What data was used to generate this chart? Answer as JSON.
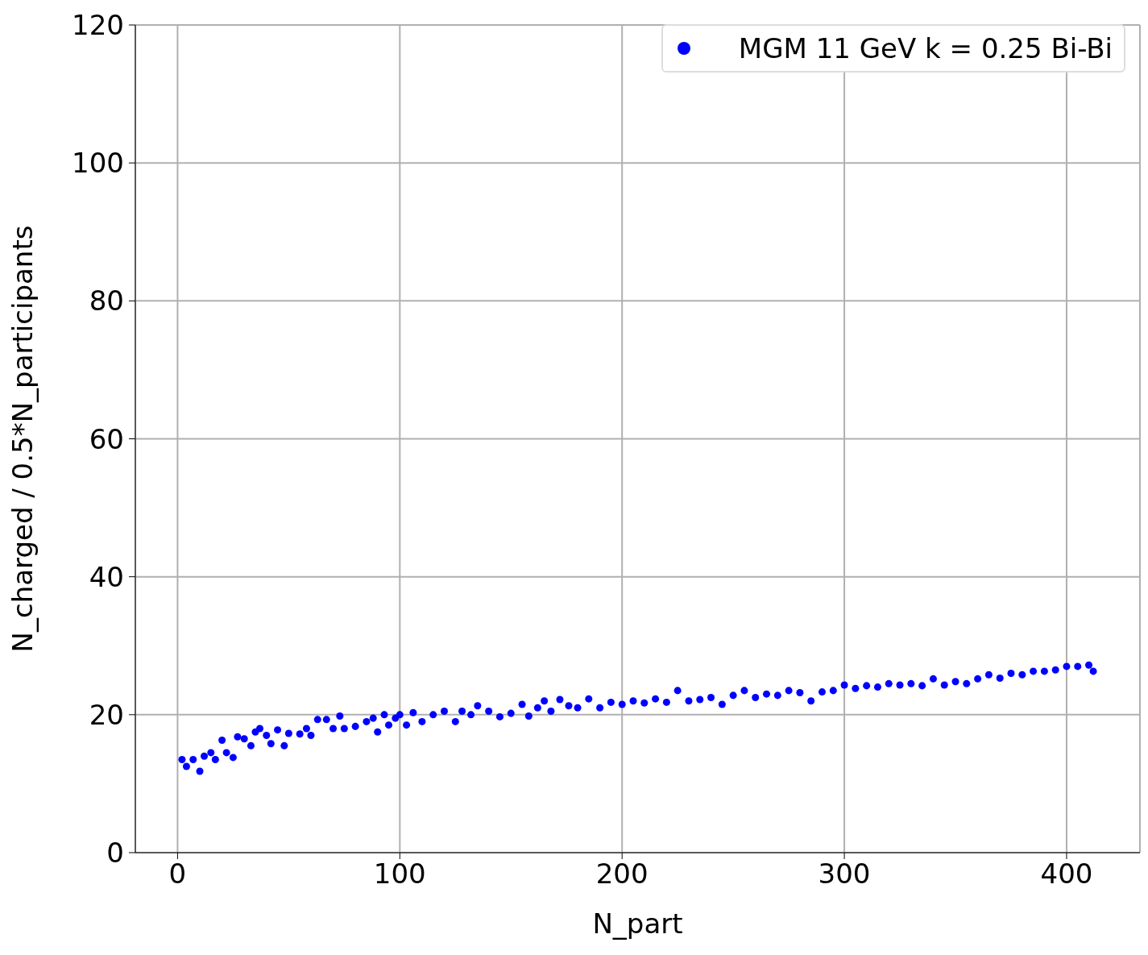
{
  "chart_data": {
    "type": "scatter",
    "xlabel": "N_part",
    "ylabel": "N_charged / 0.5*N_participants",
    "xlim": [
      -19,
      433
    ],
    "xticks": [
      0,
      100,
      200,
      300,
      400
    ],
    "ylim": [
      0,
      120
    ],
    "yticks": [
      0,
      20,
      40,
      60,
      80,
      100,
      120
    ],
    "grid": true,
    "legend": "top right",
    "marker": "circle",
    "series": [
      {
        "name": "MGM 11 GeV k = 0.25 Bi-Bi",
        "color": "#0000ff",
        "x": [
          2,
          4,
          7,
          10,
          12,
          15,
          17,
          20,
          22,
          25,
          27,
          30,
          33,
          35,
          37,
          40,
          42,
          45,
          48,
          50,
          55,
          58,
          60,
          63,
          67,
          70,
          73,
          75,
          80,
          85,
          88,
          90,
          93,
          95,
          98,
          100,
          103,
          106,
          110,
          115,
          120,
          125,
          128,
          132,
          135,
          140,
          145,
          150,
          155,
          158,
          162,
          165,
          168,
          172,
          176,
          180,
          185,
          190,
          195,
          200,
          205,
          210,
          215,
          220,
          225,
          230,
          235,
          240,
          245,
          250,
          255,
          260,
          265,
          270,
          275,
          280,
          285,
          290,
          295,
          300,
          305,
          310,
          315,
          320,
          325,
          330,
          335,
          340,
          345,
          350,
          355,
          360,
          365,
          370,
          375,
          380,
          385,
          390,
          395,
          400,
          405,
          410,
          412
        ],
        "values": [
          13.5,
          12.5,
          13.5,
          11.8,
          14,
          14.5,
          13.5,
          16.3,
          14.5,
          13.8,
          16.8,
          16.5,
          15.5,
          17.5,
          18,
          17,
          15.8,
          17.8,
          15.5,
          17.3,
          17.2,
          18,
          17,
          19.3,
          19.3,
          18,
          19.8,
          18,
          18.3,
          19,
          19.5,
          17.5,
          20,
          18.5,
          19.5,
          20,
          18.5,
          20.3,
          19,
          20,
          20.5,
          19,
          20.5,
          20,
          21.3,
          20.5,
          19.7,
          20.2,
          21.5,
          19.8,
          21,
          22,
          20.5,
          22.2,
          21.3,
          21,
          22.3,
          21,
          21.8,
          21.5,
          22,
          21.7,
          22.3,
          21.8,
          23.5,
          22,
          22.2,
          22.5,
          21.5,
          22.8,
          23.5,
          22.5,
          23,
          22.8,
          23.5,
          23.2,
          22,
          23.3,
          23.5,
          24.3,
          23.8,
          24.2,
          24,
          24.5,
          24.3,
          24.5,
          24.2,
          25.2,
          24.3,
          24.8,
          24.5,
          25.2,
          25.8,
          25.3,
          26,
          25.8,
          26.3,
          26.3,
          26.5,
          27,
          27,
          27.2,
          26.3
        ]
      }
    ]
  }
}
